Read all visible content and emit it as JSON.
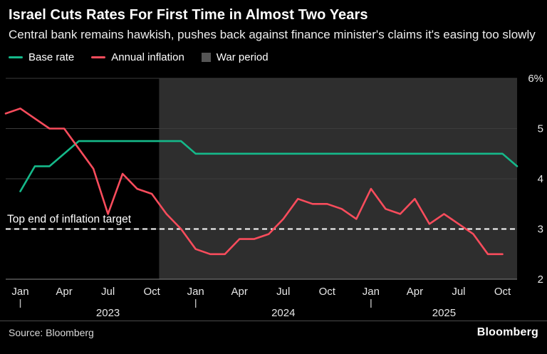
{
  "header": {
    "title": "Israel Cuts Rates For First Time in Almost Two Years",
    "subtitle": "Central bank remains hawkish, pushes back against finance minister's claims it's easing too slowly"
  },
  "legend": {
    "items": [
      {
        "label": "Base rate",
        "type": "line",
        "color": "#15b98a"
      },
      {
        "label": "Annual inflation",
        "type": "line",
        "color": "#f94c5c"
      },
      {
        "label": "War period",
        "type": "square",
        "color": "#555555"
      }
    ]
  },
  "chart_data": {
    "type": "line",
    "x_unit": "month",
    "x_start": "2022-12",
    "ylim": [
      2,
      6
    ],
    "grid": true,
    "legend_position": "top",
    "colors": {
      "base_rate": "#15b98a",
      "inflation": "#f94c5c",
      "war_region": "#2e2e2e",
      "gridline": "#3c3c3c",
      "axis": "#6e6e6e",
      "tick_text": "#e6e6e6",
      "target": "#ffffff"
    },
    "yticks": [
      {
        "value": 6,
        "label": "6%"
      },
      {
        "value": 5,
        "label": "5"
      },
      {
        "value": 4,
        "label": "4"
      },
      {
        "value": 3,
        "label": "3"
      },
      {
        "value": 2,
        "label": "2"
      }
    ],
    "xticks": [
      {
        "index": 1,
        "label": "Jan"
      },
      {
        "index": 4,
        "label": "Apr"
      },
      {
        "index": 7,
        "label": "Jul"
      },
      {
        "index": 10,
        "label": "Oct"
      },
      {
        "index": 13,
        "label": "Jan"
      },
      {
        "index": 16,
        "label": "Apr"
      },
      {
        "index": 19,
        "label": "Jul"
      },
      {
        "index": 22,
        "label": "Oct"
      },
      {
        "index": 25,
        "label": "Jan"
      },
      {
        "index": 28,
        "label": "Apr"
      },
      {
        "index": 31,
        "label": "Jul"
      },
      {
        "index": 34,
        "label": "Oct"
      }
    ],
    "year_start_tick_indices": [
      1,
      13,
      25
    ],
    "year_labels": [
      {
        "index": 7,
        "label": "2023"
      },
      {
        "index": 19,
        "label": "2024"
      },
      {
        "index": 30,
        "label": "2025"
      }
    ],
    "war_period": {
      "label": "War period",
      "start_index": 10.5,
      "end_index": 35
    },
    "target_line": {
      "value": 3,
      "label": "Top end of inflation target"
    },
    "series": [
      {
        "name": "Base rate",
        "color": "#15b98a",
        "start_index": 1,
        "values": [
          3.75,
          4.25,
          4.25,
          4.5,
          4.75,
          4.75,
          4.75,
          4.75,
          4.75,
          4.75,
          4.75,
          4.75,
          4.5,
          4.5,
          4.5,
          4.5,
          4.5,
          4.5,
          4.5,
          4.5,
          4.5,
          4.5,
          4.5,
          4.5,
          4.5,
          4.5,
          4.5,
          4.5,
          4.5,
          4.5,
          4.5,
          4.5,
          4.5,
          4.5,
          4.25
        ]
      },
      {
        "name": "Annual inflation",
        "color": "#f94c5c",
        "start_index": 0,
        "values": [
          5.3,
          5.4,
          5.2,
          5.0,
          5.0,
          4.6,
          4.2,
          3.3,
          4.1,
          3.8,
          3.7,
          3.3,
          3.0,
          2.6,
          2.5,
          2.5,
          2.8,
          2.8,
          2.9,
          3.2,
          3.6,
          3.5,
          3.5,
          3.4,
          3.2,
          3.8,
          3.4,
          3.3,
          3.6,
          3.1,
          3.3,
          3.1,
          2.9,
          2.5,
          2.5
        ]
      }
    ]
  },
  "footer": {
    "source": "Source: Bloomberg",
    "brand": "Bloomberg"
  }
}
